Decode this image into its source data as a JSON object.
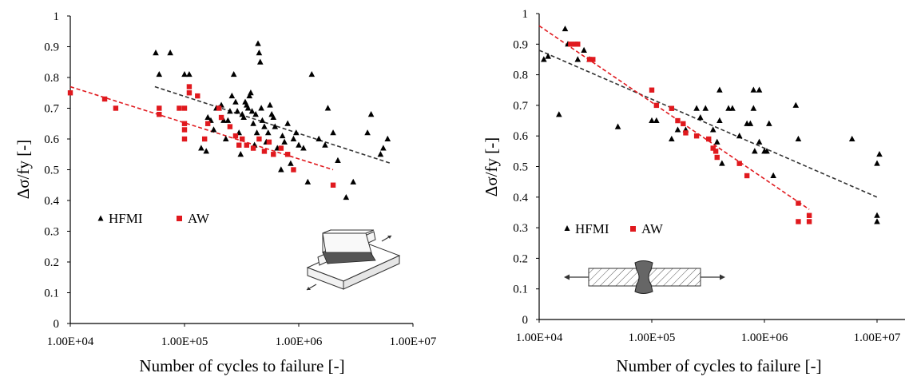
{
  "chart_data": [
    {
      "type": "scatter",
      "x_scale": "log",
      "xlabel": "Number of cycles to failure [-]",
      "ylabel": "Δσ/fy [-]",
      "xlim": [
        10000,
        10000000
      ],
      "ylim": [
        0,
        1
      ],
      "x_ticks": [
        "1.00E+04",
        "1.00E+05",
        "1.00E+06",
        "1.00E+07"
      ],
      "y_ticks": [
        "0",
        "0.1",
        "0.2",
        "0.3",
        "0.4",
        "0.5",
        "0.6",
        "0.7",
        "0.8",
        "0.9",
        "1"
      ],
      "grid": false,
      "legend_position": "left-middle",
      "inset": "T-joint specimen",
      "series": [
        {
          "name": "HFMI",
          "marker": "triangle",
          "color": "#000000",
          "points": [
            [
              56000,
              0.88
            ],
            [
              75000,
              0.88
            ],
            [
              60000,
              0.81
            ],
            [
              100000,
              0.81
            ],
            [
              110000,
              0.81
            ],
            [
              140000,
              0.57
            ],
            [
              155000,
              0.56
            ],
            [
              160000,
              0.67
            ],
            [
              170000,
              0.66
            ],
            [
              180000,
              0.63
            ],
            [
              190000,
              0.7
            ],
            [
              200000,
              0.7
            ],
            [
              210000,
              0.71
            ],
            [
              220000,
              0.66
            ],
            [
              230000,
              0.6
            ],
            [
              240000,
              0.66
            ],
            [
              250000,
              0.69
            ],
            [
              260000,
              0.74
            ],
            [
              270000,
              0.81
            ],
            [
              280000,
              0.72
            ],
            [
              290000,
              0.69
            ],
            [
              300000,
              0.62
            ],
            [
              310000,
              0.55
            ],
            [
              320000,
              0.68
            ],
            [
              330000,
              0.67
            ],
            [
              340000,
              0.72
            ],
            [
              350000,
              0.71
            ],
            [
              360000,
              0.7
            ],
            [
              370000,
              0.74
            ],
            [
              380000,
              0.75
            ],
            [
              390000,
              0.69
            ],
            [
              400000,
              0.65
            ],
            [
              410000,
              0.58
            ],
            [
              420000,
              0.68
            ],
            [
              430000,
              0.62
            ],
            [
              440000,
              0.91
            ],
            [
              450000,
              0.88
            ],
            [
              460000,
              0.85
            ],
            [
              470000,
              0.7
            ],
            [
              480000,
              0.66
            ],
            [
              500000,
              0.64
            ],
            [
              520000,
              0.59
            ],
            [
              540000,
              0.62
            ],
            [
              560000,
              0.71
            ],
            [
              580000,
              0.68
            ],
            [
              600000,
              0.67
            ],
            [
              620000,
              0.64
            ],
            [
              650000,
              0.57
            ],
            [
              700000,
              0.5
            ],
            [
              720000,
              0.61
            ],
            [
              750000,
              0.59
            ],
            [
              800000,
              0.65
            ],
            [
              850000,
              0.52
            ],
            [
              900000,
              0.6
            ],
            [
              950000,
              0.62
            ],
            [
              1000000,
              0.58
            ],
            [
              1100000,
              0.57
            ],
            [
              1200000,
              0.46
            ],
            [
              1300000,
              0.81
            ],
            [
              1500000,
              0.6
            ],
            [
              1700000,
              0.58
            ],
            [
              1800000,
              0.7
            ],
            [
              2000000,
              0.62
            ],
            [
              2200000,
              0.53
            ],
            [
              2600000,
              0.41
            ],
            [
              3000000,
              0.46
            ],
            [
              4000000,
              0.62
            ],
            [
              4300000,
              0.68
            ],
            [
              5200000,
              0.55
            ],
            [
              5500000,
              0.57
            ],
            [
              6000000,
              0.6
            ]
          ]
        },
        {
          "name": "AW",
          "marker": "square",
          "color": "#e0191e",
          "points": [
            [
              10000,
              0.75
            ],
            [
              20000,
              0.73
            ],
            [
              25000,
              0.7
            ],
            [
              60000,
              0.7
            ],
            [
              60000,
              0.68
            ],
            [
              90000,
              0.7
            ],
            [
              100000,
              0.7
            ],
            [
              100000,
              0.65
            ],
            [
              100000,
              0.63
            ],
            [
              100000,
              0.6
            ],
            [
              110000,
              0.77
            ],
            [
              110000,
              0.75
            ],
            [
              130000,
              0.74
            ],
            [
              150000,
              0.6
            ],
            [
              160000,
              0.65
            ],
            [
              200000,
              0.7
            ],
            [
              210000,
              0.67
            ],
            [
              250000,
              0.64
            ],
            [
              280000,
              0.61
            ],
            [
              300000,
              0.58
            ],
            [
              320000,
              0.6
            ],
            [
              350000,
              0.58
            ],
            [
              400000,
              0.57
            ],
            [
              450000,
              0.6
            ],
            [
              500000,
              0.56
            ],
            [
              550000,
              0.59
            ],
            [
              600000,
              0.55
            ],
            [
              700000,
              0.57
            ],
            [
              800000,
              0.55
            ],
            [
              900000,
              0.5
            ],
            [
              2000000,
              0.45
            ]
          ]
        }
      ],
      "trendlines": [
        {
          "series": "HFMI",
          "color": "#333333",
          "from": [
            55000,
            0.77
          ],
          "to": [
            6500000,
            0.52
          ]
        },
        {
          "series": "AW",
          "color": "#e0191e",
          "from": [
            10000,
            0.77
          ],
          "to": [
            2000000,
            0.5
          ]
        }
      ]
    },
    {
      "type": "scatter",
      "x_scale": "log",
      "xlabel": "Number of cycles to failure [-]",
      "ylabel": "Δσ/fy [-]",
      "xlim": [
        10000,
        10000000
      ],
      "ylim": [
        0,
        1
      ],
      "x_ticks": [
        "1.00E+04",
        "1.00E+05",
        "1.00E+06",
        "1.00E+07"
      ],
      "y_ticks": [
        "0",
        "0.1",
        "0.2",
        "0.3",
        "0.4",
        "0.5",
        "0.6",
        "0.7",
        "0.8",
        "0.9",
        "1"
      ],
      "grid": false,
      "legend_position": "bottom-left",
      "inset": "butt-welded plate specimen",
      "series": [
        {
          "name": "HFMI",
          "marker": "triangle",
          "color": "#000000",
          "points": [
            [
              11000,
              0.85
            ],
            [
              12000,
              0.86
            ],
            [
              15000,
              0.67
            ],
            [
              17000,
              0.95
            ],
            [
              18000,
              0.9
            ],
            [
              22000,
              0.85
            ],
            [
              25000,
              0.88
            ],
            [
              28000,
              0.85
            ],
            [
              50000,
              0.63
            ],
            [
              100000,
              0.65
            ],
            [
              110000,
              0.65
            ],
            [
              150000,
              0.59
            ],
            [
              170000,
              0.62
            ],
            [
              200000,
              0.62
            ],
            [
              250000,
              0.69
            ],
            [
              270000,
              0.66
            ],
            [
              300000,
              0.69
            ],
            [
              350000,
              0.62
            ],
            [
              380000,
              0.58
            ],
            [
              400000,
              0.75
            ],
            [
              400000,
              0.65
            ],
            [
              420000,
              0.51
            ],
            [
              480000,
              0.69
            ],
            [
              520000,
              0.69
            ],
            [
              600000,
              0.6
            ],
            [
              700000,
              0.64
            ],
            [
              750000,
              0.64
            ],
            [
              800000,
              0.69
            ],
            [
              800000,
              0.75
            ],
            [
              820000,
              0.55
            ],
            [
              900000,
              0.75
            ],
            [
              900000,
              0.58
            ],
            [
              1000000,
              0.55
            ],
            [
              1050000,
              0.55
            ],
            [
              1100000,
              0.64
            ],
            [
              1200000,
              0.47
            ],
            [
              1900000,
              0.7
            ],
            [
              2000000,
              0.59
            ],
            [
              6000000,
              0.59
            ],
            [
              10000000,
              0.34
            ],
            [
              10000000,
              0.32
            ],
            [
              10000000,
              0.51
            ],
            [
              10500000,
              0.54
            ]
          ]
        },
        {
          "name": "AW",
          "marker": "square",
          "color": "#e0191e",
          "points": [
            [
              19000,
              0.9
            ],
            [
              21000,
              0.9
            ],
            [
              22000,
              0.9
            ],
            [
              28000,
              0.85
            ],
            [
              30000,
              0.85
            ],
            [
              100000,
              0.75
            ],
            [
              110000,
              0.7
            ],
            [
              150000,
              0.69
            ],
            [
              170000,
              0.65
            ],
            [
              190000,
              0.64
            ],
            [
              200000,
              0.61
            ],
            [
              250000,
              0.6
            ],
            [
              320000,
              0.59
            ],
            [
              350000,
              0.56
            ],
            [
              370000,
              0.55
            ],
            [
              380000,
              0.53
            ],
            [
              600000,
              0.51
            ],
            [
              700000,
              0.47
            ],
            [
              2000000,
              0.38
            ],
            [
              2000000,
              0.32
            ],
            [
              2500000,
              0.32
            ],
            [
              2500000,
              0.34
            ]
          ]
        }
      ],
      "trendlines": [
        {
          "series": "HFMI",
          "color": "#333333",
          "from": [
            10000,
            0.88
          ],
          "to": [
            10000000,
            0.4
          ]
        },
        {
          "series": "AW",
          "color": "#e0191e",
          "from": [
            10000,
            0.96
          ],
          "to": [
            2500000,
            0.36
          ]
        }
      ]
    }
  ]
}
